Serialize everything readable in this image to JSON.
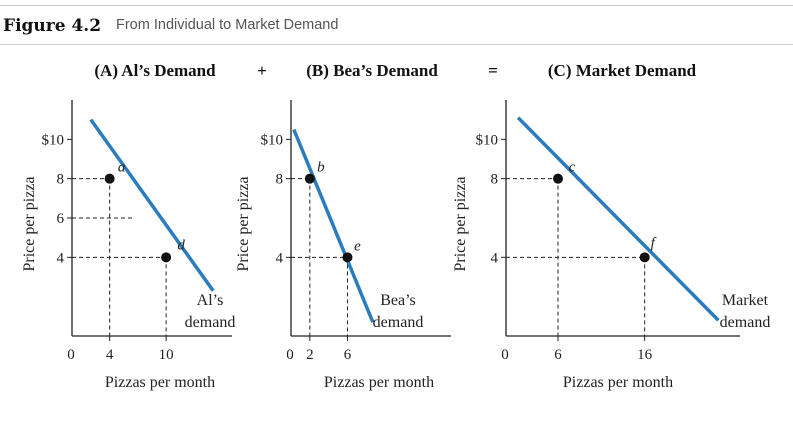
{
  "figure": {
    "label": "Figure 4.2",
    "caption": "From Individual to Market Demand"
  },
  "operators": [
    "+",
    "="
  ],
  "colors": {
    "curve": "#2b7bbf",
    "axis": "#222222",
    "dot": "#111111"
  },
  "chart_data": [
    {
      "type": "line",
      "title": "(A) Al’s Demand",
      "xlabel": "Pizzas per month",
      "ylabel": "Price per pizza",
      "xlim": [
        0,
        17
      ],
      "ylim": [
        0,
        12
      ],
      "x_ticks": [
        "0",
        "4",
        "10"
      ],
      "y_ticks": [
        "$10",
        "8",
        "6",
        "4"
      ],
      "series": [
        {
          "name": "Al’s demand",
          "x": [
            2,
            15
          ],
          "y": [
            11,
            2.3
          ]
        }
      ],
      "points": [
        {
          "label": "a",
          "x": 4,
          "y": 8
        },
        {
          "label": "d",
          "x": 10,
          "y": 4
        }
      ],
      "guide_levels": [
        6
      ],
      "curve_label": [
        "Al’s",
        "demand"
      ]
    },
    {
      "type": "line",
      "title": "(B) Bea’s Demand",
      "xlabel": "Pizzas per month",
      "ylabel": "Price per pizza",
      "xlim": [
        0,
        17
      ],
      "ylim": [
        0,
        12
      ],
      "x_ticks": [
        "0",
        "2",
        "6"
      ],
      "y_ticks": [
        "$10",
        "8",
        "4"
      ],
      "series": [
        {
          "name": "Bea’s demand",
          "x": [
            0.3,
            8.7
          ],
          "y": [
            10.5,
            0.7
          ]
        }
      ],
      "points": [
        {
          "label": "b",
          "x": 2,
          "y": 8
        },
        {
          "label": "e",
          "x": 6,
          "y": 4
        }
      ],
      "guide_levels": [],
      "curve_label": [
        "Bea’s",
        "demand"
      ]
    },
    {
      "type": "line",
      "title": "(C) Market Demand",
      "xlabel": "Pizzas per month",
      "ylabel": "Price per pizza",
      "xlim": [
        0,
        27
      ],
      "ylim": [
        0,
        12
      ],
      "x_ticks": [
        "0",
        "6",
        "16"
      ],
      "y_ticks": [
        "$10",
        "8",
        "4"
      ],
      "series": [
        {
          "name": "Market demand",
          "x": [
            1.4,
            24.5
          ],
          "y": [
            11.1,
            0.8
          ]
        }
      ],
      "points": [
        {
          "label": "c",
          "x": 6,
          "y": 8
        },
        {
          "label": "f",
          "x": 16,
          "y": 4
        }
      ],
      "guide_levels": [],
      "curve_label": [
        "Market",
        "demand"
      ]
    }
  ]
}
